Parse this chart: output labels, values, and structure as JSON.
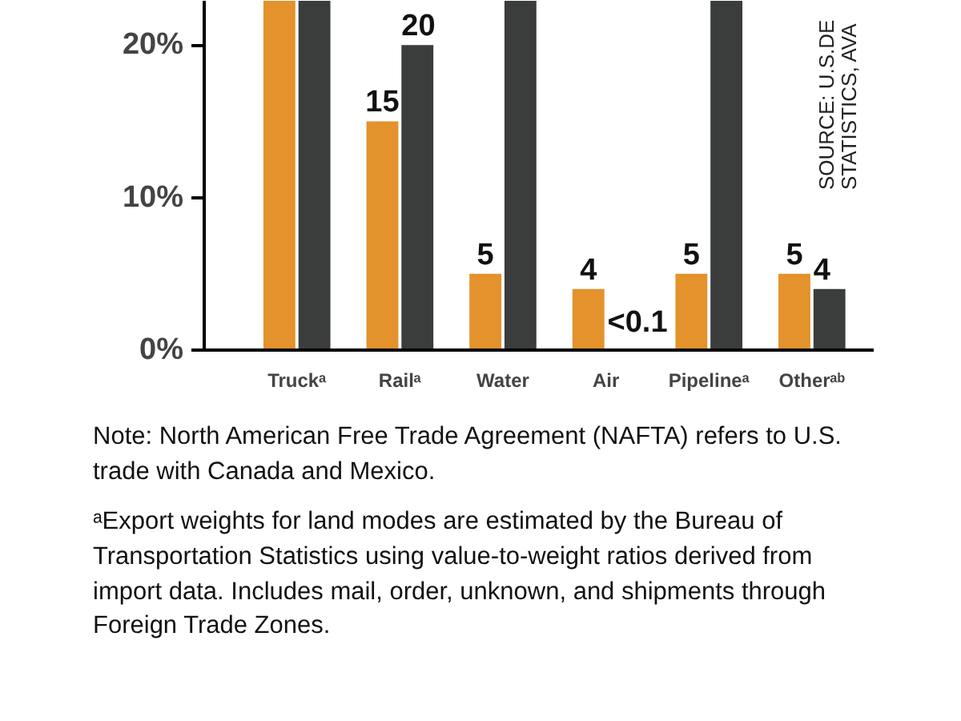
{
  "chart_data": {
    "type": "bar",
    "categories": [
      "Truckᵃ",
      "Railᵃ",
      "Water",
      "Air",
      "Pipelineᵃ",
      "Otherᵃᵇ"
    ],
    "series": [
      {
        "color": "#e3922c",
        "values": [
          22.9,
          15,
          5,
          4,
          5,
          5
        ],
        "value_labels": [
          null,
          "15",
          "5",
          "4",
          "5",
          "5"
        ]
      },
      {
        "color": "#3b3d3d",
        "values": [
          22.9,
          20,
          22.9,
          0.05,
          22.9,
          4
        ],
        "value_labels": [
          null,
          "20",
          null,
          "<0.1",
          null,
          "4"
        ]
      }
    ],
    "ylim": [
      0,
      22.9
    ],
    "yticks": [
      {
        "value": 0,
        "label": "0%"
      },
      {
        "value": 10,
        "label": "10%"
      },
      {
        "value": 20,
        "label": "20%"
      }
    ],
    "grid": false,
    "annotations": [
      "SOURCE: U.S.DE",
      "STATISTICS, AVA",
      "Note: North American Free Trade Agreement (NAFTA) refers to U.S. trade with Canada and Mexico.",
      "ᵃExport weights for land modes are estimated by the Bureau of Transportation Statistics using value-to-weight ratios derived from import data. Includes mail, order, unknown, and shipments through Foreign Trade Zones."
    ]
  }
}
